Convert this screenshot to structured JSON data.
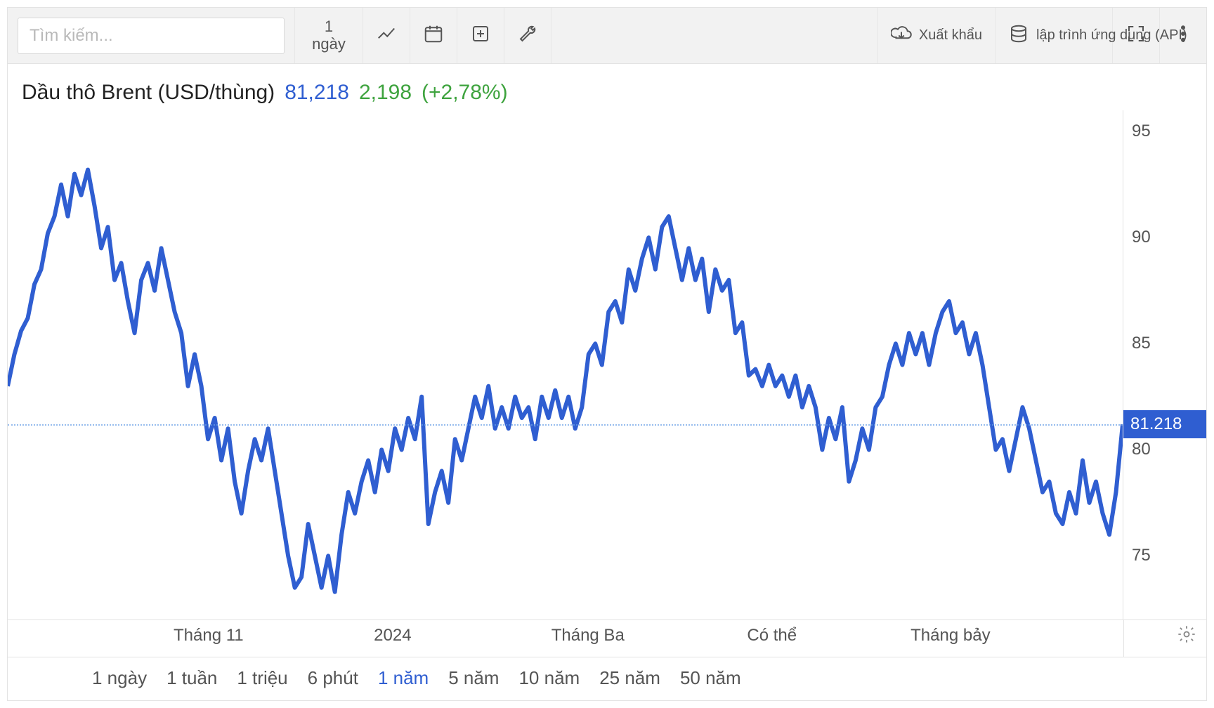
{
  "toolbar": {
    "search_placeholder": "Tìm kiếm...",
    "interval": "1 ngày",
    "export_label": "Xuất khẩu",
    "api_label": "lập trình ứng dụng (API)"
  },
  "title": {
    "name": "Dầu thô Brent (USD/thùng)",
    "price": "81,218",
    "change": "2,198",
    "pct": "(+2,78%)",
    "name_color": "#222222",
    "price_color": "#2f5ed1",
    "change_color": "#3ea33e"
  },
  "chart": {
    "type": "line",
    "line_color": "#2f5ed1",
    "line_width": 3,
    "background_color": "#ffffff",
    "ylim": [
      72,
      96
    ],
    "current_value": 81.218,
    "current_label": "81.218",
    "yticks": [
      {
        "v": 95,
        "label": "95"
      },
      {
        "v": 90,
        "label": "90"
      },
      {
        "v": 85,
        "label": "85"
      },
      {
        "v": 80,
        "label": "80"
      },
      {
        "v": 75,
        "label": "75"
      }
    ],
    "xticks": [
      {
        "p": 0.18,
        "label": "Tháng 11"
      },
      {
        "p": 0.345,
        "label": "2024"
      },
      {
        "p": 0.52,
        "label": "Tháng Ba"
      },
      {
        "p": 0.685,
        "label": "Có thể"
      },
      {
        "p": 0.845,
        "label": "Tháng bảy"
      }
    ],
    "y": [
      83.0,
      84.5,
      85.6,
      86.2,
      87.8,
      88.5,
      90.2,
      91.0,
      92.5,
      91.0,
      93.0,
      92.0,
      93.2,
      91.5,
      89.5,
      90.5,
      88.0,
      88.8,
      87.0,
      85.5,
      88.0,
      88.8,
      87.5,
      89.5,
      88.0,
      86.5,
      85.5,
      83.0,
      84.5,
      83.0,
      80.5,
      81.5,
      79.5,
      81.0,
      78.5,
      77.0,
      79.0,
      80.5,
      79.5,
      81.0,
      79.0,
      77.0,
      75.0,
      73.5,
      74.0,
      76.5,
      75.0,
      73.5,
      75.0,
      73.3,
      76.0,
      78.0,
      77.0,
      78.5,
      79.5,
      78.0,
      80.0,
      79.0,
      81.0,
      80.0,
      81.5,
      80.5,
      82.5,
      76.5,
      78.0,
      79.0,
      77.5,
      80.5,
      79.5,
      81.0,
      82.5,
      81.5,
      83.0,
      81.0,
      82.0,
      81.0,
      82.5,
      81.5,
      82.0,
      80.5,
      82.5,
      81.5,
      82.8,
      81.5,
      82.5,
      81.0,
      82.0,
      84.5,
      85.0,
      84.0,
      86.5,
      87.0,
      86.0,
      88.5,
      87.5,
      89.0,
      90.0,
      88.5,
      90.5,
      91.0,
      89.5,
      88.0,
      89.5,
      88.0,
      89.0,
      86.5,
      88.5,
      87.5,
      88.0,
      85.5,
      86.0,
      83.5,
      83.8,
      83.0,
      84.0,
      83.0,
      83.5,
      82.5,
      83.5,
      82.0,
      83.0,
      82.0,
      80.0,
      81.5,
      80.5,
      82.0,
      78.5,
      79.5,
      81.0,
      80.0,
      82.0,
      82.5,
      84.0,
      85.0,
      84.0,
      85.5,
      84.5,
      85.5,
      84.0,
      85.5,
      86.5,
      87.0,
      85.5,
      86.0,
      84.5,
      85.5,
      84.0,
      82.0,
      80.0,
      80.5,
      79.0,
      80.5,
      82.0,
      81.0,
      79.5,
      78.0,
      78.5,
      77.0,
      76.5,
      78.0,
      77.0,
      79.5,
      77.5,
      78.5,
      77.0,
      76.0,
      78.0,
      81.2
    ]
  },
  "ranges": {
    "items": [
      "1 ngày",
      "1 tuần",
      "1 triệu",
      "6 phút",
      "1 năm",
      "5 năm",
      "10 năm",
      "25 năm",
      "50 năm"
    ],
    "active_index": 4
  }
}
